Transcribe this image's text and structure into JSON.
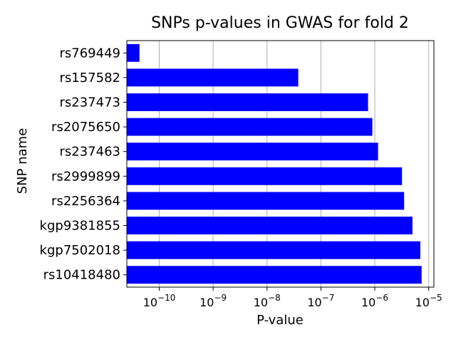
{
  "chart_data": {
    "type": "bar",
    "orientation": "horizontal",
    "title": "SNPs p-values in GWAS for fold 2",
    "xlabel": "P-value",
    "ylabel": "SNP name",
    "x_scale": "log",
    "xlim": [
      2.5e-11,
      1.25e-05
    ],
    "x_ticks": [
      {
        "exp": -10,
        "value": 1e-10
      },
      {
        "exp": -9,
        "value": 1e-09
      },
      {
        "exp": -8,
        "value": 1e-08
      },
      {
        "exp": -7,
        "value": 1e-07
      },
      {
        "exp": -6,
        "value": 1e-06
      },
      {
        "exp": -5,
        "value": 1e-05
      }
    ],
    "tick_base": "10",
    "grid": "vertical",
    "bar_color": "#0000ff",
    "categories": [
      "rs769449",
      "rs157582",
      "rs237473",
      "rs2075650",
      "rs237463",
      "rs2999899",
      "rs2256364",
      "kgp9381855",
      "kgp7502018",
      "rs10418480"
    ],
    "values": [
      4.3e-11,
      3.8e-08,
      7.5e-07,
      9e-07,
      1.15e-06,
      3.2e-06,
      3.5e-06,
      5e-06,
      7e-06,
      7.4e-06
    ]
  }
}
